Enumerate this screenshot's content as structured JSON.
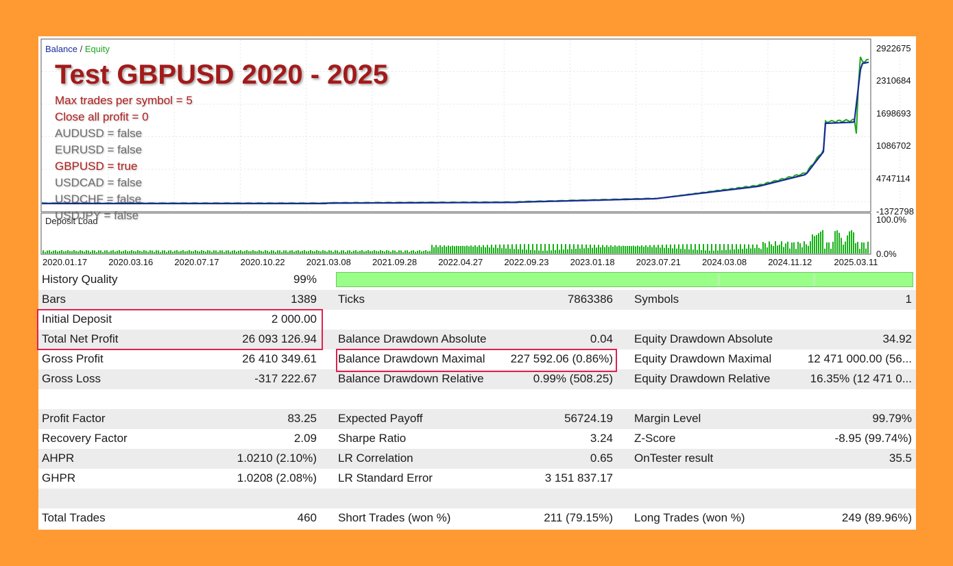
{
  "chart": {
    "legend": {
      "balance": "Balance",
      "separator": "/",
      "equity": "Equity"
    },
    "title": "Test GBPUSD 2020 - 2025",
    "params": [
      {
        "text": "Max trades per symbol = 5",
        "color": "red"
      },
      {
        "text": "Close all profit = 0",
        "color": "red"
      },
      {
        "text": "AUDUSD = false",
        "color": "gray"
      },
      {
        "text": "EURUSD = false",
        "color": "gray"
      },
      {
        "text": "GBPUSD = true",
        "color": "red"
      },
      {
        "text": "USDCAD = false",
        "color": "gray"
      },
      {
        "text": "USDCHF = false",
        "color": "gray"
      },
      {
        "text": "USDJPY = false",
        "color": "gray"
      }
    ],
    "y_axis_labels": [
      "2922675",
      "2310684",
      "1698693",
      "1086702",
      "4747114",
      "-1372798"
    ],
    "deposit_load": {
      "label": "Deposit Load",
      "axis_labels": [
        "100.0%",
        "0.0%"
      ]
    },
    "x_axis_labels": [
      "2020.01.17",
      "2020.03.16",
      "2020.07.17",
      "2020.10.22",
      "2021.03.08",
      "2021.09.28",
      "2022.04.27",
      "2022.09.23",
      "2023.01.18",
      "2023.07.21",
      "2024.03.08",
      "2024.11.12",
      "2025.03.11"
    ],
    "colors": {
      "balance": "#1a2a9a",
      "equity": "#1fa51f",
      "deposit_load": "#16b016",
      "title": "#a31a1a",
      "highlight_box": "#e0204f",
      "history_bar": "#99ff88"
    }
  },
  "stats": {
    "history_quality": {
      "label": "History Quality",
      "value": "99%"
    },
    "rows": [
      {
        "alt": true,
        "cells": [
          "Bars",
          "1389",
          "Ticks",
          "7863386",
          "Symbols",
          "1"
        ]
      },
      {
        "alt": false,
        "cells": [
          "Initial Deposit",
          "2 000.00",
          "",
          "",
          "",
          ""
        ]
      },
      {
        "alt": true,
        "cells": [
          "Total Net Profit",
          "26 093 126.94",
          "Balance Drawdown Absolute",
          "0.04",
          "Equity Drawdown Absolute",
          "34.92"
        ]
      },
      {
        "alt": false,
        "cells": [
          "Gross Profit",
          "26 410 349.61",
          "Balance Drawdown Maximal",
          "227 592.06 (0.86%)",
          "Equity Drawdown Maximal",
          "12 471 000.00 (56..."
        ]
      },
      {
        "alt": true,
        "cells": [
          "Gross Loss",
          "-317 222.67",
          "Balance Drawdown Relative",
          "0.99% (508.25)",
          "Equity Drawdown Relative",
          "16.35% (12 471 0..."
        ]
      },
      {
        "alt": false,
        "cells": [
          "",
          "",
          "",
          "",
          "",
          ""
        ]
      },
      {
        "alt": true,
        "cells": [
          "Profit Factor",
          "83.25",
          "Expected Payoff",
          "56724.19",
          "Margin Level",
          "99.79%"
        ]
      },
      {
        "alt": false,
        "cells": [
          "Recovery Factor",
          "2.09",
          "Sharpe Ratio",
          "3.24",
          "Z-Score",
          "-8.95 (99.74%)"
        ]
      },
      {
        "alt": true,
        "cells": [
          "AHPR",
          "1.0210 (2.10%)",
          "LR Correlation",
          "0.65",
          "OnTester result",
          "35.5"
        ]
      },
      {
        "alt": false,
        "cells": [
          "GHPR",
          "1.0208 (2.08%)",
          "LR Standard Error",
          "3 151 837.17",
          "",
          ""
        ]
      },
      {
        "alt": true,
        "cells": [
          "",
          "",
          "",
          "",
          "",
          ""
        ]
      },
      {
        "alt": false,
        "cells": [
          "Total Trades",
          "460",
          "Short Trades (won %)",
          "211 (79.15%)",
          "Long Trades (won %)",
          "249 (89.96%)"
        ]
      }
    ]
  }
}
